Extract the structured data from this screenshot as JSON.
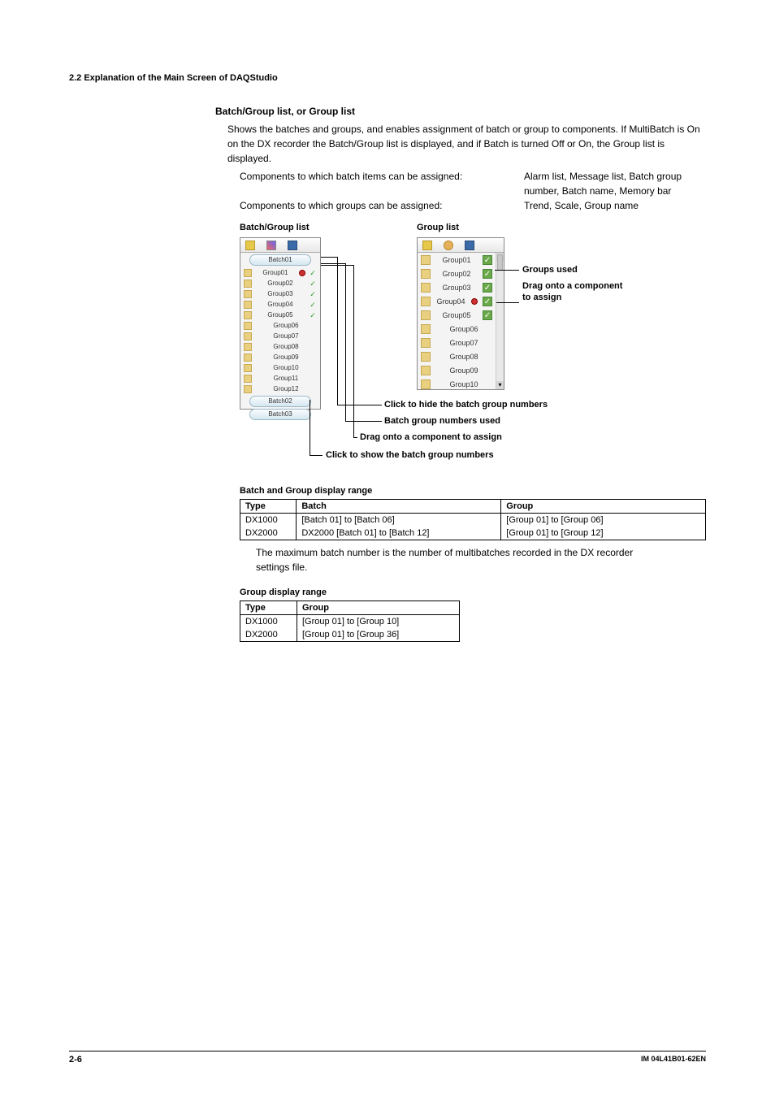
{
  "header": {
    "section": "2.2  Explanation of the Main Screen of DAQStudio"
  },
  "heading1": "Batch/Group list, or Group list",
  "para1": "Shows the batches and groups, and enables assignment of batch or group to components. If MultiBatch is On on the DX recorder the Batch/Group list is displayed, and if Batch is turned Off or On, the Group list is displayed.",
  "assign_rows": [
    {
      "left": "Components to which batch items can be assigned:",
      "right": "Alarm list, Message list, Batch group number, Batch name, Memory bar"
    },
    {
      "left": "Components to which groups can be assigned:",
      "right": "Trend, Scale, Group name"
    }
  ],
  "diagram": {
    "left_label": "Batch/Group list",
    "right_label": "Group list",
    "batch_buttons": [
      "Batch01",
      "Batch02",
      "Batch03"
    ],
    "batch_groups": [
      {
        "name": "Group01",
        "used": true,
        "drag": true
      },
      {
        "name": "Group02",
        "used": true
      },
      {
        "name": "Group03",
        "used": true
      },
      {
        "name": "Group04",
        "used": true
      },
      {
        "name": "Group05",
        "used": true
      },
      {
        "name": "Group06"
      },
      {
        "name": "Group07"
      },
      {
        "name": "Group08"
      },
      {
        "name": "Group09"
      },
      {
        "name": "Group10"
      },
      {
        "name": "Group11"
      },
      {
        "name": "Group12"
      }
    ],
    "group_list": [
      {
        "name": "Group01",
        "used": true
      },
      {
        "name": "Group02",
        "used": true
      },
      {
        "name": "Group03",
        "used": true
      },
      {
        "name": "Group04",
        "used": true,
        "drag": true
      },
      {
        "name": "Group05",
        "used": true
      },
      {
        "name": "Group06"
      },
      {
        "name": "Group07"
      },
      {
        "name": "Group08"
      },
      {
        "name": "Group09"
      },
      {
        "name": "Group10"
      }
    ],
    "callouts": {
      "groups_used": "Groups used",
      "drag_assign_r1": "Drag onto a component",
      "drag_assign_r2": "to assign",
      "hide": "Click to hide the batch group numbers",
      "bgn_used": "Batch group numbers used",
      "drag_assign2": "Drag onto a component to assign",
      "show": "Click to show the batch group numbers"
    }
  },
  "t1": {
    "heading": "Batch and Group display range",
    "cols": [
      "Type",
      "Batch",
      "Group"
    ],
    "rows": [
      [
        "DX1000",
        "[Batch 01] to [Batch 06]",
        "[Group 01] to [Group 06]"
      ],
      [
        "DX2000",
        "DX2000 [Batch 01] to [Batch 12]",
        "[Group 01] to [Group 12]"
      ]
    ],
    "note": "The maximum batch number is the number of multibatches recorded in the DX recorder settings file."
  },
  "t2": {
    "heading": "Group display range",
    "cols": [
      "Type",
      "Group"
    ],
    "rows": [
      [
        "DX1000",
        "[Group 01] to [Group 10]"
      ],
      [
        "DX2000",
        "[Group 01] to [Group 36]"
      ]
    ]
  },
  "footer": {
    "page": "2-6",
    "doc": "IM 04L41B01-62EN"
  }
}
